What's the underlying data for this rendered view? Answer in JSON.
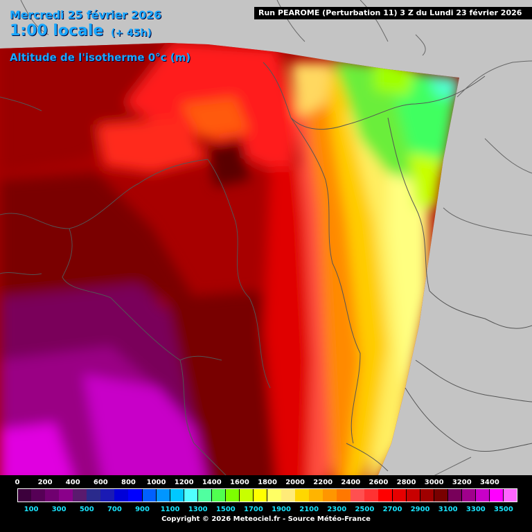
{
  "header": {
    "date": "Mercredi 25 février 2026",
    "time": "1:00 locale",
    "lead": "(+ 45h)",
    "parameter": "Altitude de l'isotherme 0°c (m)"
  },
  "run_info": "Run PEAROME (Perturbation 11) 3 Z du Lundi 23 février 2026",
  "legend": {
    "top_labels": [
      "0",
      "200",
      "400",
      "600",
      "800",
      "1000",
      "1200",
      "1400",
      "1600",
      "1800",
      "2000",
      "2200",
      "2400",
      "2600",
      "2800",
      "3000",
      "3200",
      "3400"
    ],
    "bottom_labels": [
      "100",
      "300",
      "500",
      "700",
      "900",
      "1100",
      "1300",
      "1500",
      "1700",
      "1900",
      "2100",
      "2300",
      "2500",
      "2700",
      "2900",
      "3100",
      "3300",
      "3500"
    ],
    "colors": [
      "#3c003c",
      "#560056",
      "#700070",
      "#8a008a",
      "#5a1a6e",
      "#2a2a8c",
      "#1a1ab4",
      "#0000d8",
      "#0000ff",
      "#0060ff",
      "#0096ff",
      "#00c8ff",
      "#50ffff",
      "#50ffa0",
      "#50ff50",
      "#7dff00",
      "#c8ff00",
      "#ffff00",
      "#ffff64",
      "#ffeb78",
      "#ffd700",
      "#ffb400",
      "#ff9600",
      "#ff7800",
      "#ff5050",
      "#ff3232",
      "#ff0000",
      "#e60000",
      "#c80000",
      "#a00000",
      "#780000",
      "#78005a",
      "#a0008c",
      "#c800c8",
      "#ff00ff",
      "#ff64ff"
    ]
  },
  "copyright": "Copyright © 2026 Meteociel.fr - Source Météo-France"
}
